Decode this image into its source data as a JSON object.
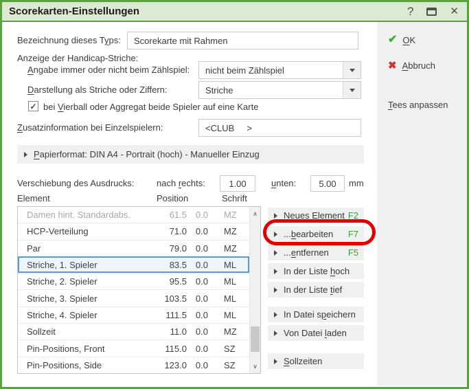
{
  "window": {
    "title": "Scorekarten-Einstellungen"
  },
  "icons": {
    "help": "?",
    "close": "✕",
    "checkbox_check": "✓",
    "ok_check": "✔",
    "cancel_x": "✖",
    "scroll_up": "∧",
    "scroll_down": "∨"
  },
  "colors": {
    "window_green": "#58a43c",
    "titlebar_bg": "#dcead3",
    "fkey_green": "#2bab27",
    "ok_green": "#3bad3b",
    "cancel_red": "#cf3434",
    "annotation_red": "#e10000",
    "selection_blue": "#5b9bd5"
  },
  "sidebar": {
    "ok": {
      "text": "OK",
      "ul": 0
    },
    "abbruch": {
      "text": "Abbruch",
      "ul": 0
    },
    "tees": {
      "text": "Tees anpassen",
      "ul": 0
    }
  },
  "form": {
    "bezeichnung_label": {
      "text": "Bezeichnung dieses Typs:",
      "ul": 20
    },
    "bezeichnung_value": "Scorekarte mit Rahmen",
    "anzeige_label": "Anzeige der Handicap-Striche:",
    "angabe_label": {
      "text": "Angabe immer oder nicht beim Zählspiel:",
      "ul": 0
    },
    "angabe_value": "nicht beim Zählspiel",
    "darstellung_label": {
      "text": "Darstellung als Striche oder Ziffern:",
      "ul": 0
    },
    "darstellung_value": "Striche",
    "vierball_label": {
      "text": "bei Vierball oder Aggregat beide Spieler auf eine Karte",
      "ul": 4
    },
    "vierball_checked": true,
    "zusatz_label": {
      "text": "Zusatzinformation bei Einzelspielern:",
      "ul": 0
    },
    "zusatz_value": "<CLUB     >",
    "papierformat_label": {
      "text": "Papierformat: DIN A4 - Portrait (hoch) - Manueller Einzug",
      "ul": 0
    },
    "verschiebung_label": "Verschiebung des Ausdrucks:",
    "nach_rechts_label": {
      "text": "nach rechts:",
      "ul": 5
    },
    "nach_rechts_value": "1.00",
    "unten_label": {
      "text": "unten:",
      "ul": 0
    },
    "unten_value": "5.00",
    "unit_label": "mm"
  },
  "table": {
    "headers": {
      "element": "Element",
      "position": "Position",
      "schrift": "Schrift"
    },
    "rows": [
      {
        "name": "Damen hint. Standardabs.",
        "pos": "61.5",
        "offset": "0.0",
        "font": "MZ",
        "state": "disabled"
      },
      {
        "name": "HCP-Verteilung",
        "pos": "71.0",
        "offset": "0.0",
        "font": "MZ",
        "state": "normal"
      },
      {
        "name": "Par",
        "pos": "79.0",
        "offset": "0.0",
        "font": "MZ",
        "state": "normal"
      },
      {
        "name": "Striche, 1. Spieler",
        "pos": "83.5",
        "offset": "0.0",
        "font": "ML",
        "state": "selected"
      },
      {
        "name": "Striche, 2. Spieler",
        "pos": "95.5",
        "offset": "0.0",
        "font": "ML",
        "state": "normal"
      },
      {
        "name": "Striche, 3. Spieler",
        "pos": "103.5",
        "offset": "0.0",
        "font": "ML",
        "state": "normal"
      },
      {
        "name": "Striche, 4. Spieler",
        "pos": "111.5",
        "offset": "0.0",
        "font": "ML",
        "state": "normal"
      },
      {
        "name": "Sollzeit",
        "pos": "11.0",
        "offset": "0.0",
        "font": "MZ",
        "state": "normal"
      },
      {
        "name": "Pin-Positions, Front",
        "pos": "115.0",
        "offset": "0.0",
        "font": "SZ",
        "state": "normal"
      },
      {
        "name": "Pin-Positions, Side",
        "pos": "123.0",
        "offset": "0.0",
        "font": "SZ",
        "state": "normal"
      }
    ]
  },
  "button_groups": [
    [
      {
        "id": "neues-element",
        "label": {
          "text": "Neues Element",
          "ul": 0
        },
        "fkey": "F2"
      },
      {
        "id": "bearbeiten",
        "label": {
          "text": "...bearbeiten",
          "ul": 3
        },
        "fkey": "F7"
      },
      {
        "id": "entfernen",
        "label": {
          "text": "...entfernen",
          "ul": 3
        },
        "fkey": "F5"
      }
    ],
    [
      {
        "id": "liste-hoch",
        "label": {
          "text": "In der Liste hoch",
          "ul": 13
        }
      },
      {
        "id": "liste-tief",
        "label": {
          "text": "In der Liste tief",
          "ul": 13
        }
      }
    ],
    [
      {
        "id": "datei-speichern",
        "label": {
          "text": "In Datei speichern",
          "ul": 10
        }
      },
      {
        "id": "datei-laden",
        "label": {
          "text": "Von Datei laden",
          "ul": 10
        }
      }
    ],
    [
      {
        "id": "sollzeiten",
        "label": {
          "text": "Sollzeiten",
          "ul": 0
        }
      }
    ]
  ]
}
